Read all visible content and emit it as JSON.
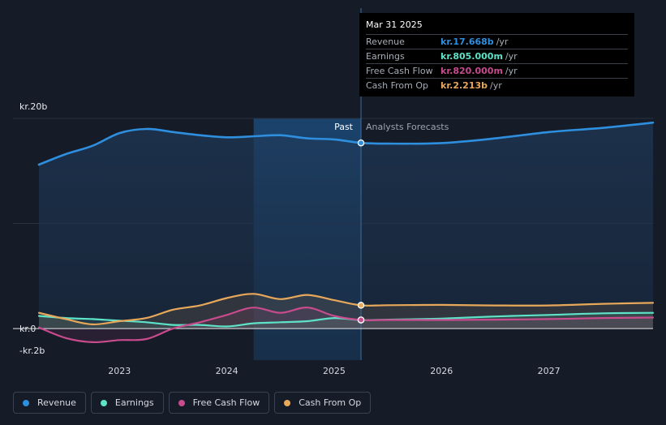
{
  "colors": {
    "revenue": "#2f8fdf",
    "earnings": "#5ee3c8",
    "free_cash_flow": "#c84b8e",
    "cash_from_op": "#e8a85a",
    "background": "#151b27"
  },
  "chart_data": {
    "type": "line",
    "x_unit": "year",
    "xlim": [
      2022.25,
      2027.97
    ],
    "ylim": [
      -2,
      20
    ],
    "y_axis_labels": [
      {
        "value": 20,
        "label": "kr.20b"
      },
      {
        "value": 0,
        "label": "kr.0"
      },
      {
        "value": -2,
        "label": "-kr.2b"
      }
    ],
    "x_ticks": [
      {
        "value": 2023,
        "label": "2023"
      },
      {
        "value": 2024,
        "label": "2024"
      },
      {
        "value": 2025,
        "label": "2025"
      },
      {
        "value": 2026,
        "label": "2026"
      },
      {
        "value": 2027,
        "label": "2027"
      }
    ],
    "past_label": "Past",
    "forecast_label": "Analysts Forecasts",
    "divider_x": 2025.25,
    "highlight_start_x": 2024.25,
    "series": [
      {
        "key": "revenue",
        "name": "Revenue",
        "points": [
          [
            2022.25,
            15.6
          ],
          [
            2022.5,
            16.6
          ],
          [
            2022.75,
            17.4
          ],
          [
            2023.0,
            18.6
          ],
          [
            2023.25,
            19.0
          ],
          [
            2023.5,
            18.7
          ],
          [
            2023.75,
            18.4
          ],
          [
            2024.0,
            18.2
          ],
          [
            2024.25,
            18.3
          ],
          [
            2024.5,
            18.4
          ],
          [
            2024.75,
            18.1
          ],
          [
            2025.0,
            18.0
          ],
          [
            2025.25,
            17.668
          ],
          [
            2025.5,
            17.6
          ],
          [
            2026.0,
            17.65
          ],
          [
            2026.5,
            18.1
          ],
          [
            2027.0,
            18.7
          ],
          [
            2027.5,
            19.1
          ],
          [
            2027.97,
            19.6
          ]
        ]
      },
      {
        "key": "earnings",
        "name": "Earnings",
        "points": [
          [
            2022.25,
            1.2
          ],
          [
            2022.5,
            1.0
          ],
          [
            2022.75,
            0.9
          ],
          [
            2023.0,
            0.75
          ],
          [
            2023.25,
            0.6
          ],
          [
            2023.5,
            0.35
          ],
          [
            2023.75,
            0.35
          ],
          [
            2024.0,
            0.2
          ],
          [
            2024.25,
            0.5
          ],
          [
            2024.5,
            0.6
          ],
          [
            2024.75,
            0.7
          ],
          [
            2025.0,
            1.0
          ],
          [
            2025.25,
            0.805
          ],
          [
            2025.5,
            0.85
          ],
          [
            2026.0,
            0.95
          ],
          [
            2026.5,
            1.15
          ],
          [
            2027.0,
            1.3
          ],
          [
            2027.5,
            1.45
          ],
          [
            2027.97,
            1.5
          ]
        ]
      },
      {
        "key": "free_cash_flow",
        "name": "Free Cash Flow",
        "points": [
          [
            2022.25,
            0.1
          ],
          [
            2022.5,
            -0.9
          ],
          [
            2022.75,
            -1.3
          ],
          [
            2023.0,
            -1.1
          ],
          [
            2023.25,
            -1.0
          ],
          [
            2023.5,
            0.0
          ],
          [
            2023.75,
            0.6
          ],
          [
            2024.0,
            1.3
          ],
          [
            2024.25,
            2.0
          ],
          [
            2024.5,
            1.5
          ],
          [
            2024.75,
            2.0
          ],
          [
            2025.0,
            1.2
          ],
          [
            2025.25,
            0.82
          ],
          [
            2025.5,
            0.82
          ],
          [
            2026.0,
            0.82
          ],
          [
            2026.5,
            0.85
          ],
          [
            2027.0,
            0.9
          ],
          [
            2027.5,
            1.0
          ],
          [
            2027.97,
            1.05
          ]
        ]
      },
      {
        "key": "cash_from_op",
        "name": "Cash From Op",
        "points": [
          [
            2022.25,
            1.5
          ],
          [
            2022.5,
            0.9
          ],
          [
            2022.75,
            0.4
          ],
          [
            2023.0,
            0.7
          ],
          [
            2023.25,
            1.0
          ],
          [
            2023.5,
            1.8
          ],
          [
            2023.75,
            2.2
          ],
          [
            2024.0,
            2.9
          ],
          [
            2024.25,
            3.3
          ],
          [
            2024.5,
            2.8
          ],
          [
            2024.75,
            3.2
          ],
          [
            2025.0,
            2.7
          ],
          [
            2025.25,
            2.213
          ],
          [
            2025.5,
            2.22
          ],
          [
            2026.0,
            2.25
          ],
          [
            2026.5,
            2.2
          ],
          [
            2027.0,
            2.2
          ],
          [
            2027.5,
            2.35
          ],
          [
            2027.97,
            2.45
          ]
        ]
      }
    ]
  },
  "tooltip": {
    "date": "Mar 31 2025",
    "rows": [
      {
        "name": "Revenue",
        "value": "kr.17.668b",
        "unit": "/yr",
        "color": "#2f8fdf"
      },
      {
        "name": "Earnings",
        "value": "kr.805.000m",
        "unit": "/yr",
        "color": "#5ee3c8"
      },
      {
        "name": "Free Cash Flow",
        "value": "kr.820.000m",
        "unit": "/yr",
        "color": "#c84b8e"
      },
      {
        "name": "Cash From Op",
        "value": "kr.2.213b",
        "unit": "/yr",
        "color": "#e8a85a"
      }
    ]
  },
  "legend": [
    {
      "label": "Revenue",
      "color": "#2f8fdf"
    },
    {
      "label": "Earnings",
      "color": "#5ee3c8"
    },
    {
      "label": "Free Cash Flow",
      "color": "#c84b8e"
    },
    {
      "label": "Cash From Op",
      "color": "#e8a85a"
    }
  ]
}
